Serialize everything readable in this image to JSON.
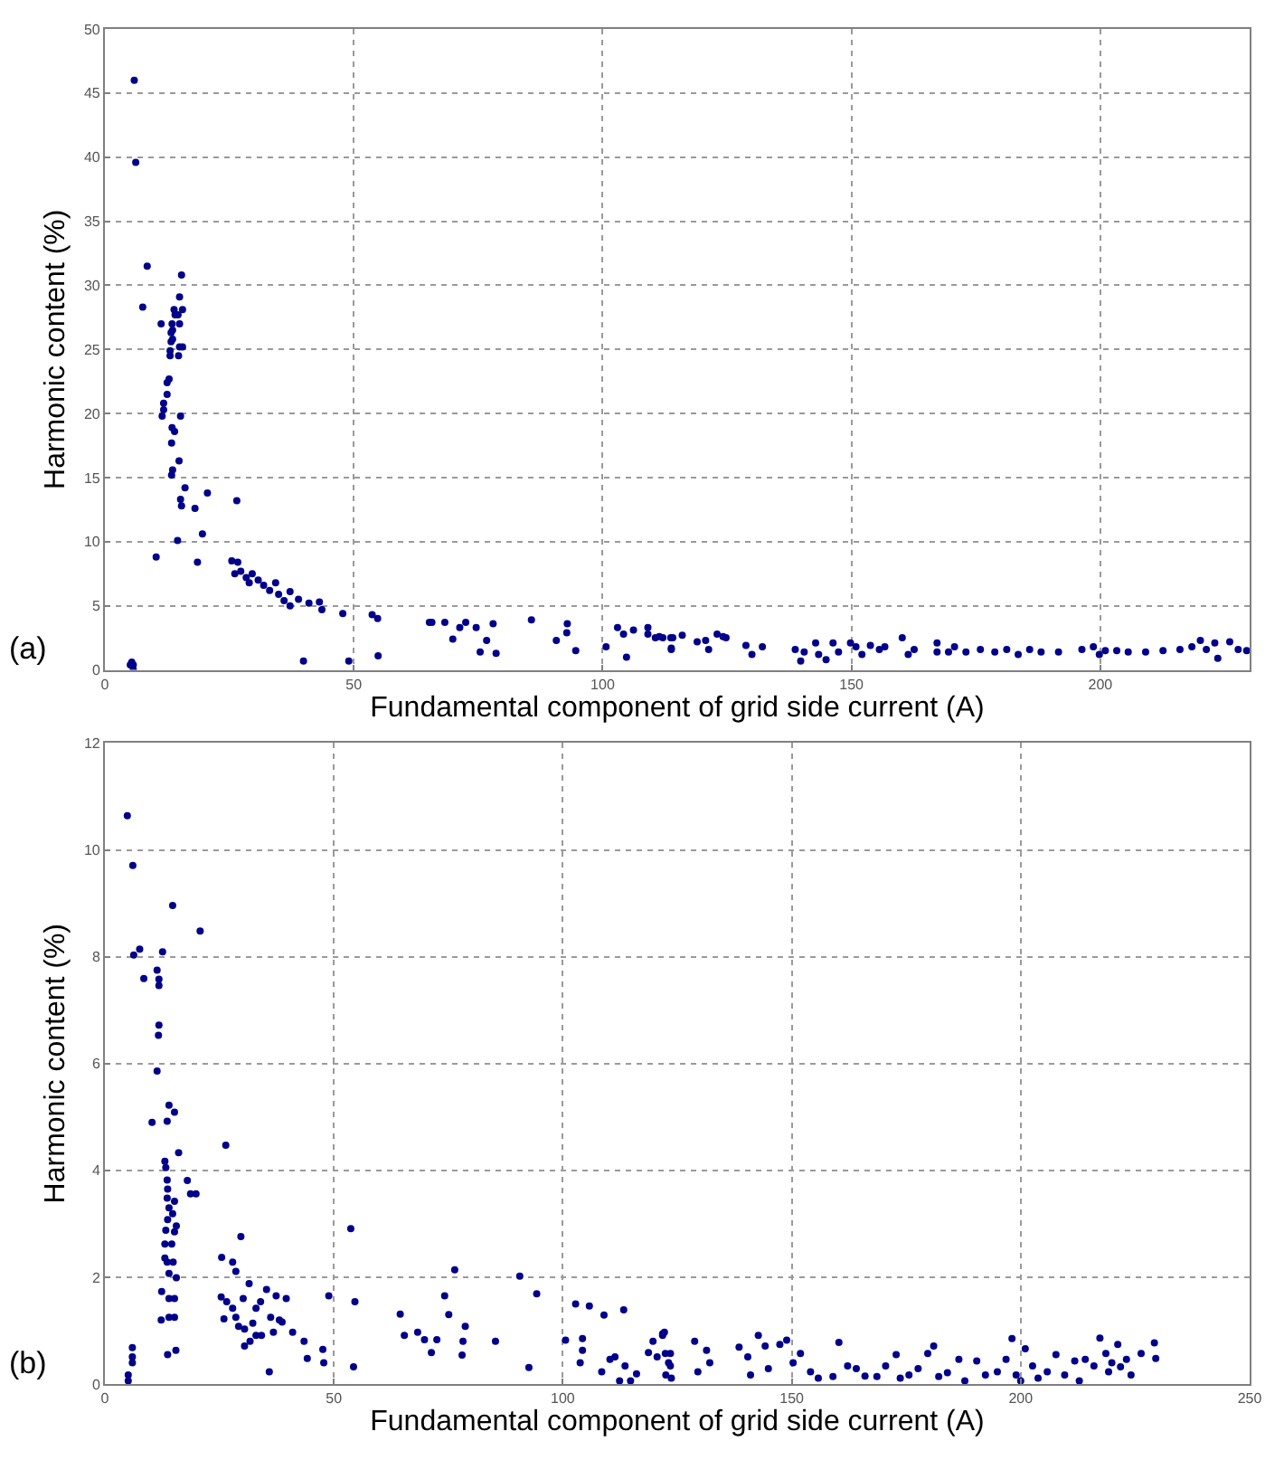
{
  "chart_data": [
    {
      "type": "scatter",
      "xlabel": "Fundamental component of grid side current (A)",
      "ylabel": "Harmonic content (%)",
      "annotations": [
        "(a)"
      ],
      "xlim": [
        0,
        230
      ],
      "xticks": [
        0,
        50,
        100,
        150,
        200
      ],
      "ylim": [
        0,
        50
      ],
      "yticks": [
        0,
        5,
        10,
        15,
        20,
        25,
        30,
        35,
        40,
        45,
        50
      ],
      "grid": true,
      "marker": "circle",
      "series": [
        {
          "color": "#00008b",
          "x": [
            5.9,
            6.2,
            8.5,
            7.6,
            11.3,
            15.4,
            15.0,
            13.9,
            14.1,
            13.5,
            13.3,
            13.3,
            13.1,
            13.1,
            14.8,
            15.0,
            15.6,
            15.0,
            15.6,
            14.7,
            13.6,
            13.6,
            12.9,
            12.5,
            12.5,
            11.8,
            11.8,
            11.5,
            15.2,
            13.5,
            14.0,
            13.4,
            14.9,
            13.6,
            13.4,
            16.1,
            15.2,
            15.4,
            20.6,
            18.1,
            19.6,
            14.6,
            10.3,
            18.6,
            26.5,
            25.5,
            26.7,
            26.1,
            27.3,
            28.4,
            29.6,
            29.0,
            30.8,
            31.9,
            33.1,
            34.3,
            34.9,
            36.0,
            37.2,
            37.2,
            38.9,
            41.0,
            43.1,
            43.6,
            47.8,
            39.9,
            49.0,
            53.7,
            54.8,
            54.9,
            5.1,
            5.7,
            5.7,
            5.4,
            65.2,
            65.7,
            68.3,
            69.9,
            71.3,
            72.5,
            74.6,
            75.4,
            76.7,
            78.0,
            78.6,
            85.7,
            90.7,
            92.9,
            92.8,
            94.6,
            100.7,
            103.0,
            104.2,
            104.8,
            106.2,
            109.1,
            109.1,
            110.6,
            112.1,
            113.8,
            114.1,
            111.4,
            113.7,
            116.0,
            113.8,
            119.0,
            120.7,
            121.3,
            123.0,
            124.2,
            124.8,
            128.8,
            130.0,
            132.1,
            138.7,
            139.8,
            140.5,
            142.8,
            143.4,
            144.9,
            146.3,
            147.4,
            149.8,
            150.9,
            152.1,
            153.8,
            155.6,
            156.7,
            160.2,
            161.4,
            162.6,
            167.2,
            167.2,
            169.5,
            170.7,
            173.0,
            175.9,
            178.8,
            181.2,
            183.5,
            185.8,
            188.1,
            191.6,
            196.3,
            198.6,
            199.8,
            201.0,
            203.3,
            205.6,
            209.1,
            212.6,
            216.0,
            218.4,
            220.1,
            221.3,
            223.0,
            223.6,
            226.0,
            227.7,
            229.4
          ],
          "values": [
            46.0,
            39.6,
            31.5,
            28.3,
            27.0,
            30.8,
            29.1,
            28.1,
            27.7,
            27.0,
            26.3,
            25.6,
            24.9,
            24.5,
            24.5,
            25.2,
            25.2,
            27.0,
            28.1,
            27.7,
            26.5,
            25.8,
            22.7,
            22.4,
            21.5,
            20.8,
            20.3,
            19.8,
            19.8,
            18.9,
            18.6,
            17.7,
            16.3,
            15.6,
            15.2,
            14.2,
            13.3,
            12.8,
            13.8,
            12.6,
            10.6,
            10.1,
            8.8,
            8.4,
            13.2,
            8.5,
            8.4,
            7.5,
            7.7,
            7.2,
            7.5,
            6.8,
            7.0,
            6.6,
            6.2,
            6.8,
            5.9,
            5.4,
            6.1,
            5.0,
            5.5,
            5.2,
            5.3,
            4.7,
            4.4,
            0.7,
            0.7,
            4.3,
            4.0,
            1.1,
            0.4,
            0.4,
            0.0,
            0.6,
            3.7,
            3.7,
            3.7,
            2.4,
            3.3,
            3.7,
            3.3,
            1.4,
            2.3,
            3.6,
            1.3,
            3.9,
            2.3,
            3.6,
            2.9,
            1.5,
            1.8,
            3.3,
            2.8,
            1.0,
            3.1,
            3.3,
            2.8,
            2.5,
            2.5,
            1.6,
            2.5,
            2.6,
            2.5,
            2.7,
            1.7,
            2.2,
            2.3,
            1.6,
            2.8,
            2.6,
            2.5,
            1.9,
            1.2,
            1.8,
            1.6,
            0.7,
            1.4,
            2.1,
            1.2,
            0.8,
            2.1,
            1.4,
            2.1,
            1.8,
            1.2,
            1.9,
            1.6,
            1.8,
            2.5,
            1.2,
            1.6,
            2.1,
            1.4,
            1.4,
            1.8,
            1.4,
            1.6,
            1.4,
            1.6,
            1.2,
            1.6,
            1.4,
            1.4,
            1.6,
            1.8,
            1.2,
            1.5,
            1.5,
            1.4,
            1.4,
            1.5,
            1.6,
            1.8,
            2.3,
            1.6,
            2.1,
            0.9,
            2.2,
            1.6,
            1.5
          ]
        }
      ]
    },
    {
      "type": "scatter",
      "xlabel": "Fundamental component of grid side current (A)",
      "ylabel": "Harmonic content (%)",
      "annotations": [
        "(b)"
      ],
      "xlim": [
        0,
        250
      ],
      "xticks": [
        0,
        50,
        100,
        150,
        200,
        250
      ],
      "ylim": [
        0,
        12
      ],
      "yticks": [
        0,
        2,
        4,
        6,
        8,
        10,
        12
      ],
      "grid": true,
      "marker": "circle",
      "series": [
        {
          "color": "#00008b",
          "x": [
            4.9,
            6.1,
            6.3,
            7.6,
            8.5,
            12.6,
            14.8,
            20.8,
            11.4,
            11.8,
            11.8,
            11.8,
            11.7,
            11.4,
            10.3,
            13.6,
            14.0,
            15.2,
            16.1,
            13.1,
            13.3,
            13.6,
            13.7,
            13.6,
            14.0,
            13.7,
            13.3,
            13.1,
            13.1,
            13.6,
            14.0,
            14.6,
            15.2,
            15.2,
            15.6,
            14.8,
            14.9,
            15.6,
            12.4,
            12.3,
            14.0,
            15.2,
            14.0,
            15.2,
            13.7,
            15.5,
            18.0,
            18.7,
            19.9,
            5.1,
            5.1,
            6.0,
            6.0,
            6.0,
            26.4,
            25.5,
            29.7,
            27.9,
            28.6,
            25.4,
            26.6,
            26.0,
            27.9,
            28.6,
            29.2,
            30.5,
            30.2,
            31.5,
            32.3,
            33.0,
            34.0,
            30.5,
            31.7,
            33.0,
            34.2,
            35.3,
            35.9,
            36.2,
            36.8,
            37.4,
            38.1,
            39.6,
            38.7,
            41.0,
            43.5,
            44.2,
            47.6,
            47.8,
            48.9,
            53.7,
            54.6,
            54.3,
            64.5,
            65.4,
            68.3,
            69.8,
            71.3,
            72.5,
            74.2,
            75.1,
            76.4,
            78.0,
            78.2,
            78.7,
            85.3,
            90.6,
            92.6,
            94.3,
            100.6,
            102.8,
            103.8,
            104.3,
            104.3,
            105.8,
            108.5,
            109.0,
            110.3,
            111.4,
            112.4,
            113.3,
            113.6,
            114.8,
            116.1,
            118.7,
            119.7,
            120.6,
            121.8,
            122.2,
            122.5,
            123.5,
            123.5,
            121.8,
            122.4,
            123.1,
            123.7,
            128.8,
            129.5,
            131.4,
            132.1,
            138.5,
            140.4,
            141.0,
            142.7,
            144.2,
            144.9,
            147.4,
            148.9,
            150.3,
            151.9,
            154.1,
            155.8,
            159.0,
            160.3,
            162.2,
            164.1,
            166.0,
            168.6,
            170.5,
            172.8,
            173.7,
            175.6,
            177.6,
            179.7,
            181.0,
            182.1,
            184.0,
            186.5,
            187.8,
            190.4,
            192.3,
            194.9,
            196.8,
            198.1,
            199.0,
            200.0,
            201.0,
            202.6,
            203.8,
            205.8,
            207.7,
            209.6,
            211.8,
            212.8,
            214.1,
            216.0,
            217.3,
            218.6,
            219.2,
            219.9,
            221.2,
            221.8,
            223.1,
            224.1,
            226.3,
            229.2,
            229.5
          ],
          "values": [
            10.64,
            9.71,
            8.03,
            8.14,
            7.59,
            8.09,
            8.96,
            8.48,
            7.75,
            7.58,
            7.46,
            6.72,
            6.53,
            5.86,
            4.9,
            4.92,
            5.22,
            5.09,
            4.33,
            4.17,
            4.05,
            3.82,
            3.65,
            3.48,
            3.3,
            3.08,
            2.88,
            2.62,
            2.36,
            2.28,
            2.07,
            2.62,
            2.85,
            3.42,
            2.96,
            3.19,
            2.28,
            1.99,
            1.73,
            1.2,
            1.6,
            1.6,
            1.25,
            1.25,
            0.55,
            0.63,
            3.81,
            3.56,
            3.56,
            0.17,
            0.06,
            0.68,
            0.51,
            0.4,
            4.47,
            2.37,
            2.76,
            2.28,
            2.11,
            1.63,
            1.54,
            1.22,
            1.42,
            1.25,
            1.08,
            1.03,
            1.6,
            1.88,
            1.14,
            1.42,
            1.54,
            0.71,
            0.8,
            0.91,
            0.91,
            1.77,
            0.23,
            1.25,
            0.97,
            1.65,
            1.2,
            1.6,
            1.16,
            0.97,
            0.8,
            0.48,
            0.65,
            0.4,
            1.65,
            2.91,
            1.54,
            0.32,
            1.31,
            0.91,
            0.97,
            0.83,
            0.59,
            0.83,
            1.65,
            1.3,
            2.14,
            0.54,
            0.8,
            1.08,
            0.8,
            2.02,
            0.31,
            1.69,
            0.82,
            1.5,
            0.4,
            0.63,
            0.85,
            1.46,
            0.23,
            1.29,
            0.46,
            0.51,
            0.06,
            1.39,
            0.34,
            0.06,
            0.19,
            0.59,
            0.8,
            0.51,
            0.91,
            0.97,
            0.17,
            0.57,
            0.34,
            0.94,
            0.57,
            0.4,
            0.11,
            0.8,
            0.23,
            0.63,
            0.4,
            0.69,
            0.51,
            0.17,
            0.91,
            0.71,
            0.29,
            0.74,
            0.82,
            0.4,
            0.57,
            0.23,
            0.11,
            0.14,
            0.78,
            0.34,
            0.29,
            0.15,
            0.14,
            0.34,
            0.55,
            0.11,
            0.17,
            0.29,
            0.57,
            0.71,
            0.14,
            0.21,
            0.46,
            0.06,
            0.43,
            0.17,
            0.23,
            0.46,
            0.85,
            0.17,
            0.06,
            0.66,
            0.34,
            0.11,
            0.23,
            0.55,
            0.17,
            0.43,
            0.06,
            0.46,
            0.34,
            0.86,
            0.57,
            0.23,
            0.4,
            0.74,
            0.32,
            0.46,
            0.17,
            0.57,
            0.77,
            0.48
          ]
        }
      ]
    }
  ]
}
